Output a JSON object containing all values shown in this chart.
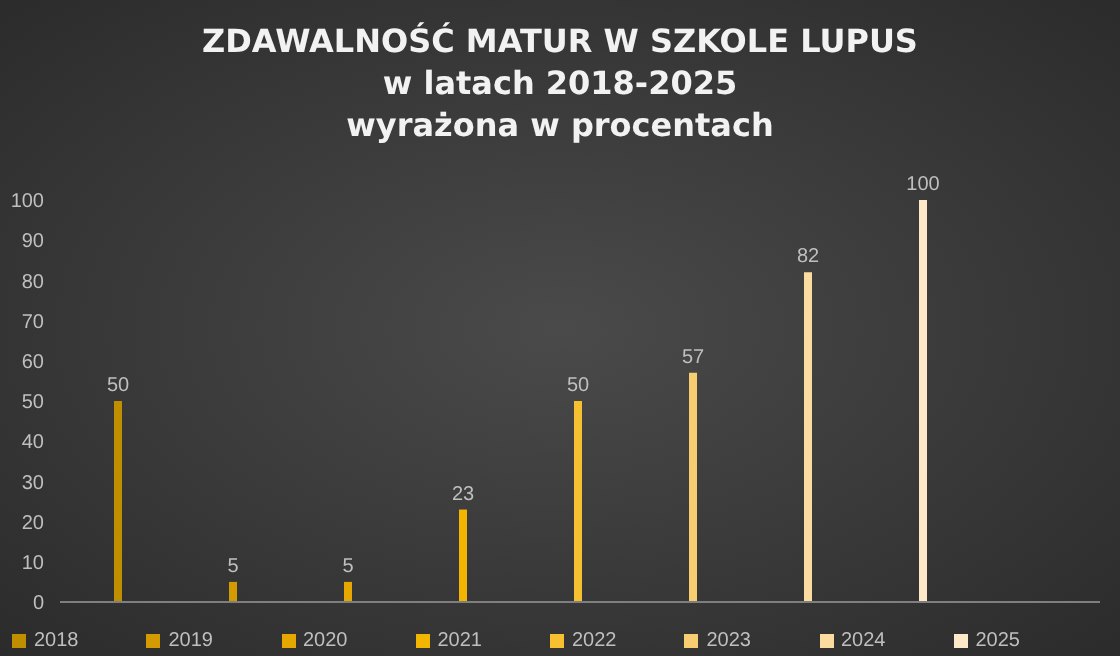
{
  "chart_data": {
    "type": "bar",
    "title": "ZDAWALNOŚĆ MATUR W SZKOLE LUPUS\nw latach 2018-2025\nwyrażona w procentach",
    "categories": [
      null,
      null,
      null,
      null,
      null,
      null,
      null,
      null
    ],
    "stacked": true,
    "series": [
      {
        "name": "2018",
        "color": "#c08f00",
        "values": [
          50,
          null,
          null,
          null,
          null,
          null,
          null,
          null
        ]
      },
      {
        "name": "2019",
        "color": "#d49b00",
        "values": [
          null,
          5,
          null,
          null,
          null,
          null,
          null,
          null
        ]
      },
      {
        "name": "2020",
        "color": "#e6a800",
        "values": [
          null,
          null,
          5,
          null,
          null,
          null,
          null,
          null
        ]
      },
      {
        "name": "2021",
        "color": "#f2b500",
        "values": [
          null,
          null,
          null,
          23,
          null,
          null,
          null,
          null
        ]
      },
      {
        "name": "2022",
        "color": "#f6c030",
        "values": [
          null,
          null,
          null,
          null,
          50,
          null,
          null,
          null
        ]
      },
      {
        "name": "2023",
        "color": "#f8cc70",
        "values": [
          null,
          null,
          null,
          null,
          null,
          57,
          null,
          null
        ]
      },
      {
        "name": "2024",
        "color": "#fbdca0",
        "values": [
          null,
          null,
          null,
          null,
          null,
          null,
          82,
          null
        ]
      },
      {
        "name": "2025",
        "color": "#fde8c8",
        "values": [
          null,
          null,
          null,
          null,
          null,
          null,
          null,
          100
        ]
      }
    ],
    "ylim": [
      0,
      100
    ],
    "yticks": [
      0,
      10,
      20,
      30,
      40,
      50,
      60,
      70,
      80,
      90,
      100
    ],
    "data_labels": true,
    "legend": "bottom"
  }
}
